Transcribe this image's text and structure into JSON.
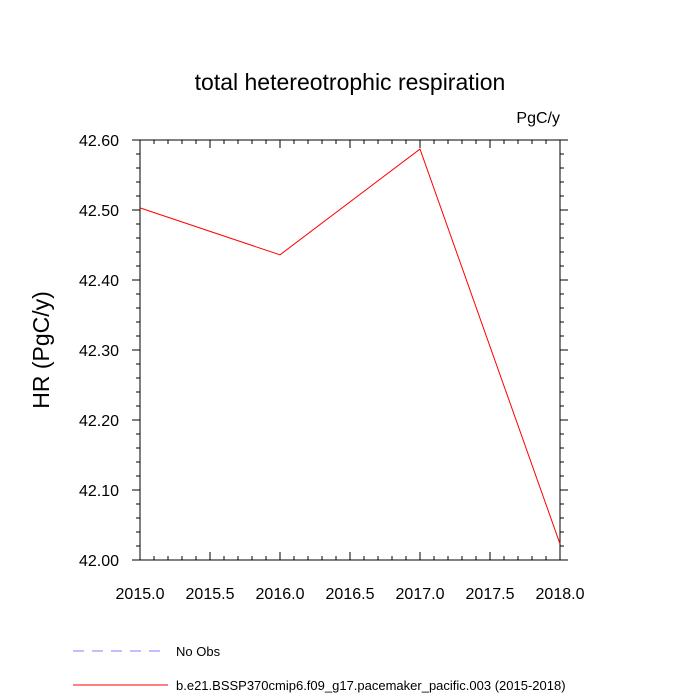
{
  "chart_data": {
    "type": "line",
    "title": "total hetereotrophic respiration",
    "units_label": "PgC/y",
    "ylabel": "HR  (PgC/y)",
    "xlabel": "",
    "xlim": [
      2015.0,
      2018.0
    ],
    "ylim": [
      42.0,
      42.6
    ],
    "x_ticks": [
      "2015.0",
      "2015.5",
      "2016.0",
      "2016.5",
      "2017.0",
      "2017.5",
      "2018.0"
    ],
    "y_ticks": [
      "42.00",
      "42.10",
      "42.20",
      "42.30",
      "42.40",
      "42.50",
      "42.60"
    ],
    "grid": false,
    "series": [
      {
        "name": "b.e21.BSSP370cmip6.f09_g17.pacemaker_pacific.003 (2015-2018)",
        "color": "#ff0000",
        "x": [
          2015,
          2016,
          2017,
          2018
        ],
        "y": [
          42.503,
          42.436,
          42.587,
          42.023
        ]
      }
    ],
    "legend": [
      {
        "label": "No Obs",
        "color": "#8080ff",
        "style": "dashed"
      },
      {
        "label": "b.e21.BSSP370cmip6.f09_g17.pacemaker_pacific.003 (2015-2018)",
        "color": "#ff0000",
        "style": "solid"
      }
    ]
  }
}
